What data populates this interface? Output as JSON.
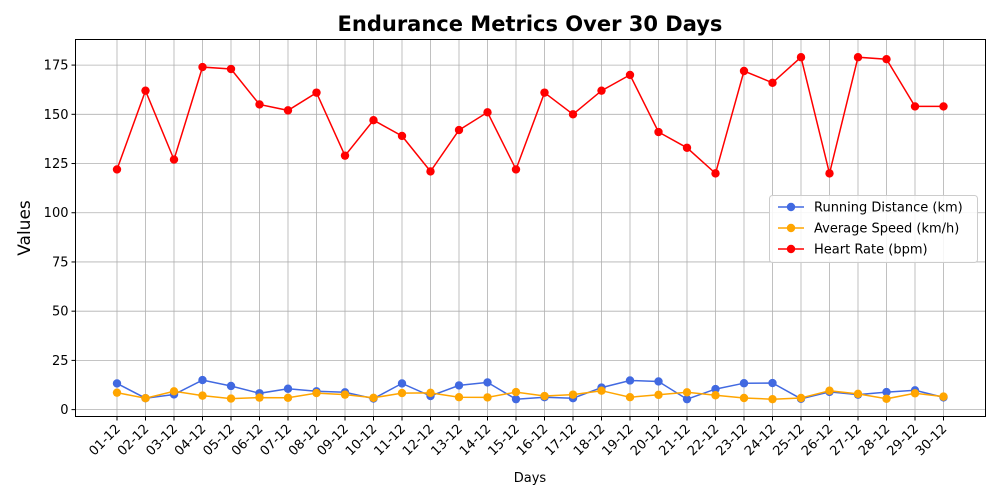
{
  "chart_data": {
    "type": "line",
    "title": "Endurance Metrics Over 30 Days",
    "xlabel": "Days",
    "ylabel": "Values",
    "categories": [
      "01-12",
      "02-12",
      "03-12",
      "04-12",
      "05-12",
      "06-12",
      "07-12",
      "08-12",
      "09-12",
      "10-12",
      "11-12",
      "12-12",
      "13-12",
      "14-12",
      "15-12",
      "16-12",
      "17-12",
      "18-12",
      "19-12",
      "20-12",
      "21-12",
      "22-12",
      "23-12",
      "24-12",
      "25-12",
      "26-12",
      "27-12",
      "28-12",
      "29-12",
      "30-12"
    ],
    "y_ticks": [
      0,
      25,
      50,
      75,
      100,
      125,
      150,
      175
    ],
    "ylim": [
      -3.5,
      188
    ],
    "grid": true,
    "legend_position": "center-right",
    "series": [
      {
        "name": "Running Distance (km)",
        "color": "#4169e1",
        "values": [
          13.3,
          5.8,
          7.7,
          15.0,
          12.0,
          8.3,
          10.6,
          9.3,
          8.8,
          5.6,
          13.3,
          6.9,
          12.3,
          13.8,
          5.3,
          6.3,
          5.8,
          11.2,
          14.8,
          14.3,
          5.3,
          10.4,
          13.4,
          13.5,
          5.5,
          9.0,
          7.6,
          8.9,
          9.8,
          6.2
        ]
      },
      {
        "name": "Average Speed (km/h)",
        "color": "#ffa500",
        "values": [
          8.6,
          5.8,
          9.3,
          7.1,
          5.6,
          6.1,
          6.0,
          8.4,
          7.6,
          6.0,
          8.4,
          8.5,
          6.3,
          6.2,
          8.9,
          6.9,
          7.6,
          9.6,
          6.3,
          7.5,
          8.8,
          7.3,
          5.9,
          5.3,
          5.9,
          9.6,
          8.0,
          5.5,
          8.3,
          6.6
        ]
      },
      {
        "name": "Heart Rate (bpm)",
        "color": "#ff0000",
        "values": [
          122,
          162,
          127,
          174,
          173,
          155,
          152,
          161,
          129,
          147,
          139,
          121,
          142,
          151,
          122,
          161,
          150,
          162,
          170,
          141,
          133,
          120,
          172,
          166,
          179,
          120,
          179,
          178,
          154,
          154
        ]
      }
    ]
  }
}
